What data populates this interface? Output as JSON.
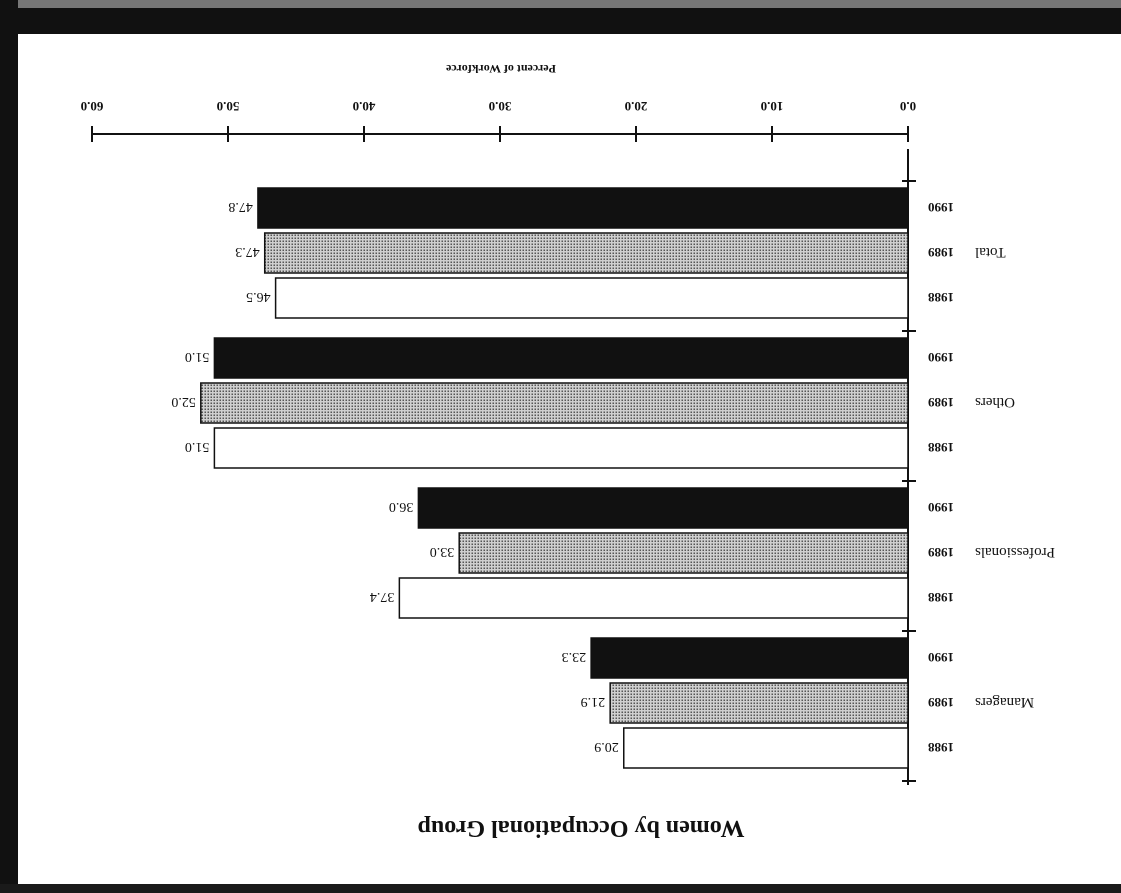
{
  "chart_data": {
    "type": "bar",
    "orientation": "horizontal",
    "title": "Women by Occupational Group",
    "xlabel": "Percent of Workforce",
    "ylabel": "",
    "xlim": [
      0,
      60
    ],
    "x_ticks": [
      "0.0",
      "10.0",
      "20.0",
      "30.0",
      "40.0",
      "50.0",
      "60.0"
    ],
    "categories": [
      "Managers",
      "Professionals",
      "Others",
      "Total"
    ],
    "series": [
      {
        "name": "1988",
        "values": [
          20.9,
          37.4,
          51.0,
          46.5
        ],
        "labels": [
          "20.9",
          "37.4",
          "51.0",
          "46.5"
        ]
      },
      {
        "name": "1989",
        "values": [
          21.9,
          33.0,
          52.0,
          47.3
        ],
        "labels": [
          "21.9",
          "33.0",
          "52.0",
          "47.3"
        ]
      },
      {
        "name": "1990",
        "values": [
          23.3,
          36.0,
          51.0,
          47.8
        ],
        "labels": [
          "23.3",
          "36.0",
          "51.0",
          "47.8"
        ]
      }
    ],
    "series_fills": {
      "1988": "#ffffff",
      "1989": "#9a9a9a",
      "1990": "#111111"
    },
    "grid": false,
    "legend": "none",
    "view": "rotated-180"
  }
}
